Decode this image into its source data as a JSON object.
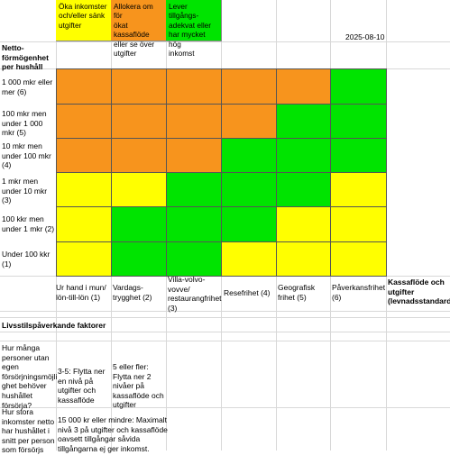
{
  "date": "2025-08-10",
  "colors": {
    "orange": "#f7941d",
    "green": "#00e400",
    "yellow": "#ffff00"
  },
  "legend": [
    {
      "color": "yellow",
      "text": "Öka inkomster\noch/eller sänk\nutgifter"
    },
    {
      "color": "orange",
      "text": "Allokera om för\nökat kassaflöde\neller se över\nutgifter"
    },
    {
      "color": "green",
      "text": "Lever tillgångs-\nadekvat eller\nhar mycket hög\ninkomst"
    }
  ],
  "row_header": "Netto-\nförmögenhet\nper hushåll",
  "rows": [
    {
      "label": "1 000 mkr eller\nmer (6)",
      "cells": [
        "orange",
        "orange",
        "orange",
        "orange",
        "orange",
        "green"
      ]
    },
    {
      "label": "100 mkr men\nunder 1 000\nmkr (5)",
      "cells": [
        "orange",
        "orange",
        "orange",
        "orange",
        "green",
        "green"
      ]
    },
    {
      "label": "10 mkr men\nunder 100 mkr\n(4)",
      "cells": [
        "orange",
        "orange",
        "orange",
        "green",
        "green",
        "green"
      ]
    },
    {
      "label": "1 mkr men\nunder 10 mkr\n(3)",
      "cells": [
        "yellow",
        "yellow",
        "green",
        "green",
        "green",
        "yellow"
      ]
    },
    {
      "label": "100 kkr men\nunder 1 mkr (2)",
      "cells": [
        "yellow",
        "green",
        "green",
        "green",
        "yellow",
        "yellow"
      ]
    },
    {
      "label": "Under 100 kkr\n(1)",
      "cells": [
        "yellow",
        "green",
        "green",
        "yellow",
        "yellow",
        "yellow"
      ]
    }
  ],
  "columns": [
    "Ur hand i mun/\nlön-till-lön (1)",
    "Vardags-\ntrygghet (2)",
    "Villa-volvo-\nvovve/\nrestaurangfrihet\n(3)",
    "Resefrihet (4)",
    "Geografisk\nfrihet (5)",
    "Påverkansfrihet\n(6)"
  ],
  "column_header": "Kassaflöde och\nutgifter\n(levnadsstandard)",
  "lifestyle_title": "Livsstilspåverkande faktorer",
  "q1": {
    "question": "Hur många\npersoner utan\negen\nförsörjningsmöjli\nghet behöver\nhushållet\nförsörja?",
    "answer1": "3-5: Flytta ner\nen nivå på\nutgifter och\nkassaflöde",
    "answer2": "5 eller fler:\nFlytta ner 2\nnivåer på\nkassaflöde och\nutgifter"
  },
  "q2": {
    "question": "Hur stora\ninkomster netto\nhar hushållet i\nsnitt per person\nsom försörjs",
    "answer": "15 000 kr eller mindre: Maximalt\nnivå 3 på utgifter och kassaflöde\noavsett tillgångar såvida\ntillgångarna ej ger inkomst."
  }
}
